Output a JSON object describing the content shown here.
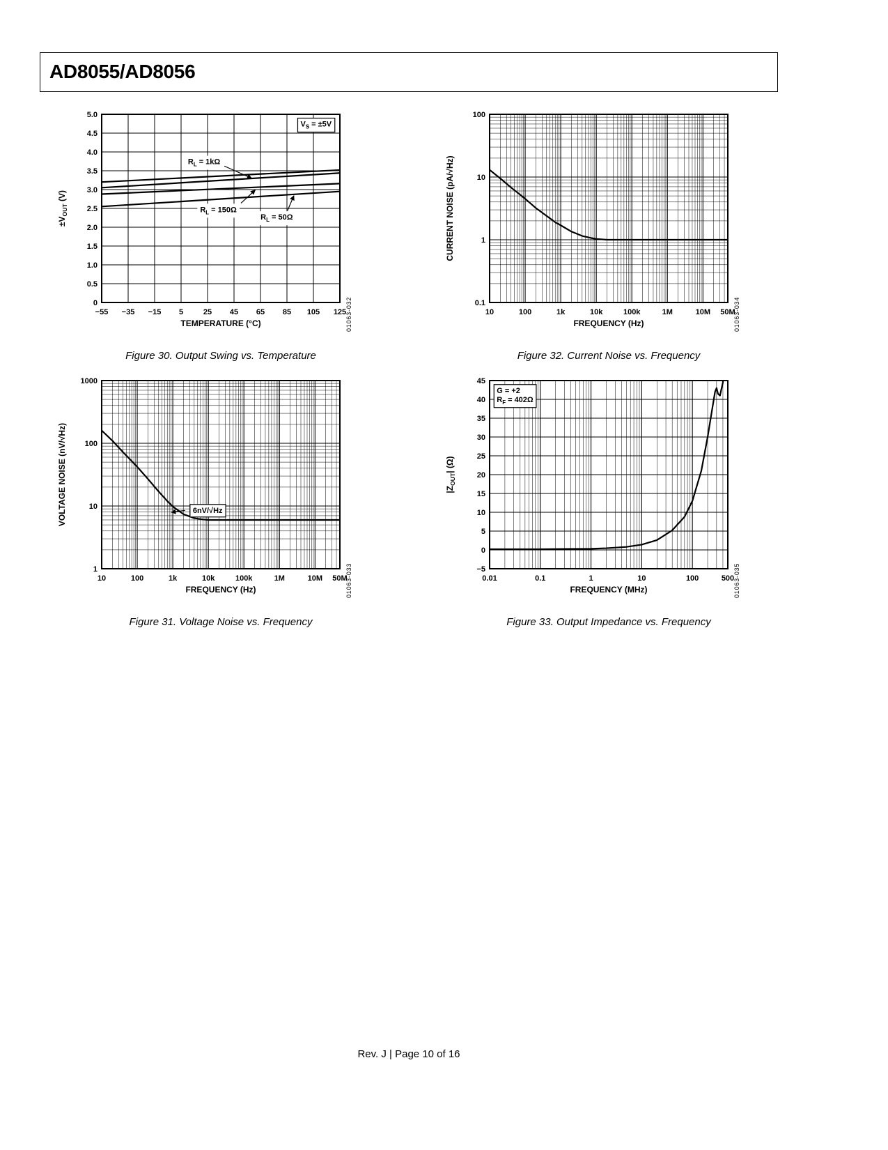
{
  "page": {
    "title": "AD8055/AD8056",
    "footer": "Rev. J | Page 10 of 16"
  },
  "figures": [
    {
      "caption": "Figure 30. Output Swing vs. Temperature",
      "code": "01063-032"
    },
    {
      "caption": "Figure 32. Current Noise vs. Frequency",
      "code": "01063-034"
    },
    {
      "caption": "Figure 31. Voltage Noise vs. Frequency",
      "code": "01063-033"
    },
    {
      "caption": "Figure 33. Output Impedance vs. Frequency",
      "code": "01063-035"
    }
  ],
  "chart_data": [
    {
      "type": "line",
      "title": "Output Swing vs. Temperature",
      "xlabel": "TEMPERATURE (°C)",
      "ylabel": "±V_OUT_ (V)",
      "x": {
        "scale": "linear",
        "min": -55,
        "max": 125,
        "ticks": [
          -55,
          -35,
          -15,
          5,
          25,
          45,
          65,
          85,
          105,
          125
        ],
        "tick_labels": [
          "−55",
          "−35",
          "−15",
          "5",
          "25",
          "45",
          "65",
          "85",
          "105",
          "125"
        ]
      },
      "y": {
        "scale": "linear",
        "min": 0,
        "max": 5,
        "ticks": [
          0,
          0.5,
          1,
          1.5,
          2,
          2.5,
          3,
          3.5,
          4,
          4.5,
          5
        ],
        "tick_labels": [
          "0",
          "0.5",
          "1.0",
          "1.5",
          "2.0",
          "2.5",
          "3.0",
          "3.5",
          "4.0",
          "4.5",
          "5.0"
        ]
      },
      "series": [
        {
          "name": "R_L_ = 1kΩ",
          "x": [
            -55,
            125
          ],
          "y": [
            3.2,
            3.52
          ]
        },
        {
          "name": "R_L_ = 1kΩ",
          "x": [
            -55,
            125
          ],
          "y": [
            3.05,
            3.44
          ]
        },
        {
          "name": "R_L_ = 150Ω",
          "x": [
            -55,
            125
          ],
          "y": [
            2.88,
            3.16
          ]
        },
        {
          "name": "R_L_ = 50Ω",
          "x": [
            -55,
            125
          ],
          "y": [
            2.55,
            2.95
          ]
        }
      ],
      "annotations": [
        {
          "text": "V_S_ = ±5V",
          "fx": 0.9,
          "fy": 0.05,
          "box": true
        },
        {
          "text": "R_L_ = 1kΩ",
          "fx": 0.43,
          "fy": 0.25,
          "arrow": {
            "from": [
              0.515,
              0.275
            ],
            "to": [
              0.63,
              0.34
            ]
          }
        },
        {
          "text": "R_L_ = 150Ω",
          "fx": 0.49,
          "fy": 0.505,
          "arrow": {
            "from": [
              0.585,
              0.472
            ],
            "to": [
              0.645,
              0.402
            ]
          }
        },
        {
          "text": "R_L_ = 50Ω",
          "fx": 0.735,
          "fy": 0.545,
          "arrow": {
            "from": [
              0.78,
              0.512
            ],
            "to": [
              0.807,
              0.432
            ]
          }
        }
      ]
    },
    {
      "type": "line",
      "title": "Current Noise vs. Frequency",
      "xlabel": "FREQUENCY (Hz)",
      "ylabel": "CURRENT NOISE (pA/√Hz)",
      "x": {
        "scale": "log",
        "min": 10,
        "max": 50000000,
        "ticks": [
          10,
          100,
          1000,
          10000,
          100000,
          1000000,
          10000000,
          50000000
        ],
        "tick_labels": [
          "10",
          "100",
          "1k",
          "10k",
          "100k",
          "1M",
          "10M",
          "50M"
        ]
      },
      "y": {
        "scale": "log",
        "min": 0.1,
        "max": 100,
        "ticks": [
          0.1,
          1,
          10,
          100
        ],
        "tick_labels": [
          "0.1",
          "1",
          "10",
          "100"
        ]
      },
      "series": [
        {
          "name": "current noise",
          "x": [
            10,
            20,
            40,
            70,
            100,
            200,
            400,
            700,
            1000,
            2000,
            4000,
            7000,
            10000,
            20000,
            50000,
            100000,
            1000000,
            10000000,
            50000000
          ],
          "y": [
            13,
            9.5,
            6.8,
            5.3,
            4.5,
            3.2,
            2.4,
            1.9,
            1.7,
            1.35,
            1.15,
            1.07,
            1.03,
            1.0,
            1.0,
            1.0,
            1.0,
            1.0,
            1.0
          ]
        }
      ],
      "annotations": []
    },
    {
      "type": "line",
      "title": "Voltage Noise vs. Frequency",
      "xlabel": "FREQUENCY (Hz)",
      "ylabel": "VOLTAGE NOISE (nV/√Hz)",
      "x": {
        "scale": "log",
        "min": 10,
        "max": 50000000,
        "ticks": [
          10,
          100,
          1000,
          10000,
          100000,
          1000000,
          10000000,
          50000000
        ],
        "tick_labels": [
          "10",
          "100",
          "1k",
          "10k",
          "100k",
          "1M",
          "10M",
          "50M"
        ]
      },
      "y": {
        "scale": "log",
        "min": 1,
        "max": 1000,
        "ticks": [
          1,
          10,
          100,
          1000
        ],
        "tick_labels": [
          "1",
          "10",
          "100",
          "1000"
        ]
      },
      "series": [
        {
          "name": "voltage noise",
          "x": [
            10,
            20,
            40,
            70,
            100,
            200,
            400,
            700,
            1000,
            2000,
            4000,
            7000,
            10000,
            100000,
            1000000,
            10000000,
            50000000
          ],
          "y": [
            160,
            110,
            72,
            52,
            42,
            27,
            17,
            12,
            9.8,
            7.4,
            6.4,
            6.1,
            6.0,
            6.0,
            6.0,
            6.0,
            6.0
          ]
        }
      ],
      "annotations": [
        {
          "text": "6nV/√Hz",
          "fx": 0.445,
          "fy": 0.688,
          "box": true,
          "arrow": {
            "from": [
              0.35,
              0.69
            ],
            "to": [
              0.292,
              0.7
            ]
          }
        }
      ]
    },
    {
      "type": "line",
      "title": "Output Impedance vs. Frequency",
      "xlabel": "FREQUENCY (MHz)",
      "ylabel": "|Z_OUT_| (Ω)",
      "x": {
        "scale": "log",
        "min": 0.01,
        "max": 500,
        "ticks": [
          0.01,
          0.1,
          1,
          10,
          100,
          500
        ],
        "tick_labels": [
          "0.01",
          "0.1",
          "1",
          "10",
          "100",
          "500"
        ]
      },
      "y": {
        "scale": "linear",
        "min": -5,
        "max": 45,
        "ticks": [
          -5,
          0,
          5,
          10,
          15,
          20,
          25,
          30,
          35,
          40,
          45
        ],
        "tick_labels": [
          "−5",
          "0",
          "5",
          "10",
          "15",
          "20",
          "25",
          "30",
          "35",
          "40",
          "45"
        ]
      },
      "series": [
        {
          "name": "output impedance",
          "x": [
            0.01,
            0.1,
            0.3,
            1,
            2,
            5,
            10,
            20,
            40,
            70,
            100,
            150,
            200,
            250,
            280,
            300,
            320,
            350,
            400,
            420
          ],
          "y": [
            0.2,
            0.2,
            0.25,
            0.3,
            0.45,
            0.8,
            1.4,
            2.6,
            5.2,
            8.8,
            13,
            21,
            30,
            38,
            42,
            43,
            41.5,
            41,
            44.5,
            49
          ]
        }
      ],
      "annotations": [
        {
          "text": "G = +2\nR_F_ = 402Ω",
          "fx": 0.03,
          "fy": 0.075,
          "box": true,
          "align": "start"
        }
      ]
    }
  ]
}
